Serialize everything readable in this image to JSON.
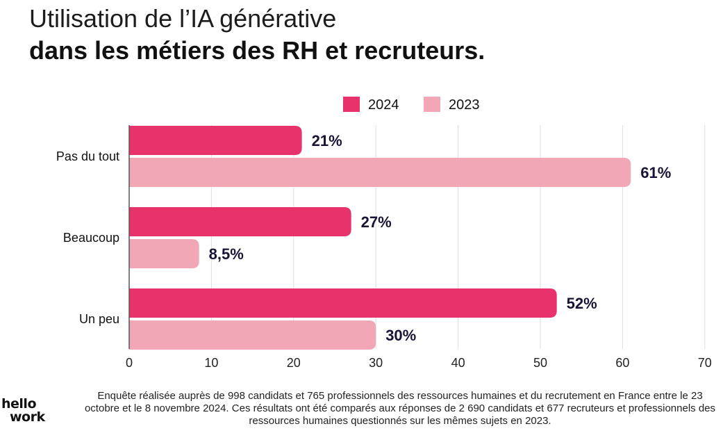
{
  "header": {
    "title": "Utilisation de l’IA générative",
    "subtitle": "dans les métiers des RH et recruteurs."
  },
  "chart_data": {
    "type": "bar",
    "orientation": "horizontal",
    "categories": [
      "Pas du tout",
      "Beaucoup",
      "Un peu"
    ],
    "series": [
      {
        "name": "2024",
        "color": "#e8326b",
        "values": [
          21,
          27,
          52
        ],
        "labels": [
          "21%",
          "27%",
          "52%"
        ]
      },
      {
        "name": "2023",
        "color": "#f2a7b6",
        "values": [
          61,
          8.5,
          30
        ],
        "labels": [
          "61%",
          "8,5%",
          "30%"
        ]
      }
    ],
    "xticks": [
      "0",
      "10",
      "20",
      "30",
      "40",
      "50",
      "60",
      "70"
    ],
    "xlim": [
      0,
      70
    ],
    "grid": true,
    "legend": "top-right"
  },
  "footer": {
    "note": "Enquête réalisée auprès de 998 candidats et 765 professionnels des ressources humaines et du recrutement en France entre le 23 octobre et le 8 novembre 2024. Ces résultats ont été comparés aux réponses de 2 690 candidats et 677 recruteurs et professionnels des ressources humaines questionnés sur les mêmes sujets en 2023.",
    "logo_line1": "hellо",
    "logo_line2": "work"
  }
}
